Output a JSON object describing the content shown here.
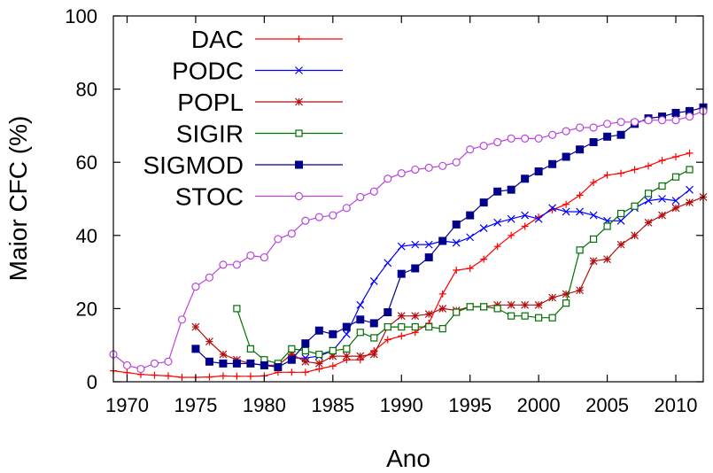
{
  "chart_data": {
    "type": "line",
    "xlabel": "Ano",
    "ylabel": "Maior CFC (%)",
    "xlim": [
      1969,
      2012
    ],
    "ylim": [
      0,
      100
    ],
    "xticks": [
      1970,
      1975,
      1980,
      1985,
      1990,
      1995,
      2000,
      2005,
      2010
    ],
    "yticks": [
      0,
      20,
      40,
      60,
      80,
      100
    ],
    "legend_position": "top-left",
    "grid": false,
    "series": [
      {
        "name": "DAC",
        "color": "#ff0000",
        "marker": "plus",
        "x": [
          1969,
          1970,
          1971,
          1972,
          1973,
          1974,
          1975,
          1976,
          1977,
          1978,
          1979,
          1980,
          1981,
          1982,
          1983,
          1984,
          1985,
          1986,
          1987,
          1988,
          1989,
          1990,
          1991,
          1992,
          1993,
          1994,
          1995,
          1996,
          1997,
          1998,
          1999,
          2000,
          2001,
          2002,
          2003,
          2004,
          2005,
          2006,
          2007,
          2008,
          2009,
          2010,
          2011
        ],
        "values": [
          3,
          2.5,
          2,
          1.8,
          1.6,
          1.2,
          1.2,
          1.3,
          1.6,
          1.5,
          1.5,
          1.6,
          2.6,
          2.6,
          2.6,
          3.5,
          4.3,
          6,
          6,
          8.5,
          11.5,
          12.5,
          13.5,
          16,
          24,
          30.5,
          31,
          33.5,
          37,
          40,
          42.5,
          45,
          47,
          48.5,
          51,
          54.5,
          56.5,
          57,
          58,
          59,
          60.5,
          61.5,
          62.5
        ]
      },
      {
        "name": "PODC",
        "color": "#0000ff",
        "marker": "cross",
        "x": [
          1982,
          1983,
          1984,
          1985,
          1986,
          1987,
          1988,
          1989,
          1990,
          1991,
          1992,
          1993,
          1994,
          1995,
          1996,
          1997,
          1998,
          1999,
          2000,
          2001,
          2002,
          2003,
          2004,
          2005,
          2006,
          2007,
          2008,
          2009,
          2010,
          2011
        ],
        "values": [
          6.5,
          6.5,
          7,
          8.5,
          13,
          21,
          27.5,
          32.5,
          37,
          37.5,
          37.5,
          38.5,
          38,
          39.5,
          42,
          43.5,
          44.5,
          45.5,
          44.5,
          47.5,
          46.5,
          46.5,
          45.5,
          44,
          44,
          47.5,
          49.5,
          50,
          49.5,
          52.5
        ]
      },
      {
        "name": "POPL",
        "color": "#b01010",
        "marker": "star",
        "x": [
          1975,
          1976,
          1977,
          1978,
          1979,
          1980,
          1981,
          1982,
          1983,
          1984,
          1985,
          1986,
          1987,
          1988,
          1989,
          1990,
          1991,
          1992,
          1993,
          1994,
          1995,
          1996,
          1997,
          1998,
          1999,
          2000,
          2001,
          2002,
          2003,
          2004,
          2005,
          2006,
          2007,
          2008,
          2009,
          2010,
          2011,
          2012
        ],
        "values": [
          15,
          11,
          7.5,
          6,
          5,
          4.5,
          4.5,
          7.5,
          5.5,
          5,
          7,
          7,
          7,
          7.5,
          15,
          18,
          18,
          18.5,
          20,
          19.5,
          20.5,
          20.5,
          21,
          21,
          21,
          21,
          23,
          24,
          25,
          33,
          33.5,
          37.5,
          40,
          43.5,
          45.5,
          47.5,
          49,
          50.5
        ]
      },
      {
        "name": "SIGIR",
        "color": "#007000",
        "marker": "square-open",
        "x": [
          1978,
          1979,
          1980,
          1981,
          1982,
          1983,
          1984,
          1985,
          1986,
          1987,
          1988,
          1989,
          1990,
          1991,
          1992,
          1993,
          1994,
          1995,
          1996,
          1997,
          1998,
          1999,
          2000,
          2001,
          2002,
          2003,
          2004,
          2005,
          2006,
          2007,
          2008,
          2009,
          2010,
          2011
        ],
        "values": [
          20,
          9,
          6,
          5,
          9,
          8.5,
          7.5,
          8.5,
          9,
          13.5,
          12,
          15,
          15,
          15,
          15,
          14.5,
          19,
          20.5,
          20.5,
          20,
          18,
          18,
          17.5,
          17.5,
          21.5,
          36,
          39,
          42.5,
          46,
          48,
          51.5,
          53.5,
          56,
          58
        ]
      },
      {
        "name": "SIGMOD",
        "color": "#00008b",
        "marker": "square-filled",
        "x": [
          1975,
          1976,
          1977,
          1978,
          1979,
          1980,
          1981,
          1982,
          1983,
          1984,
          1985,
          1986,
          1987,
          1988,
          1989,
          1990,
          1991,
          1992,
          1993,
          1994,
          1995,
          1996,
          1997,
          1998,
          1999,
          2000,
          2001,
          2002,
          2003,
          2004,
          2005,
          2006,
          2007,
          2008,
          2009,
          2010,
          2011,
          2012
        ],
        "values": [
          9,
          5.5,
          5,
          5,
          5,
          4.5,
          4,
          6,
          10.5,
          14,
          13,
          15,
          17,
          16,
          19,
          29.5,
          31,
          34,
          38.5,
          43,
          45.5,
          49,
          52,
          52.5,
          55.5,
          57.5,
          59.5,
          61.5,
          63.5,
          65.5,
          67,
          67.5,
          70.5,
          72,
          72.5,
          73.5,
          74,
          75
        ]
      },
      {
        "name": "STOC",
        "color": "#bb44dd",
        "marker": "circle-open",
        "x": [
          1969,
          1970,
          1971,
          1972,
          1973,
          1974,
          1975,
          1976,
          1977,
          1978,
          1979,
          1980,
          1981,
          1982,
          1983,
          1984,
          1985,
          1986,
          1987,
          1988,
          1989,
          1990,
          1991,
          1992,
          1993,
          1994,
          1995,
          1996,
          1997,
          1998,
          1999,
          2000,
          2001,
          2002,
          2003,
          2004,
          2005,
          2006,
          2007,
          2008,
          2009,
          2010,
          2011,
          2012
        ],
        "values": [
          7.5,
          4.5,
          3.5,
          5,
          5.5,
          17,
          26,
          28.5,
          32,
          32,
          34.5,
          34,
          39,
          40.5,
          44,
          45,
          45.5,
          47.5,
          50.5,
          52,
          55.5,
          57,
          58,
          58.5,
          59,
          60,
          63.5,
          64.5,
          65.5,
          66.5,
          66.5,
          66.5,
          67.5,
          68.5,
          69.5,
          69.5,
          70.5,
          71,
          71,
          71.5,
          71.5,
          71.5,
          72.5,
          74
        ]
      }
    ]
  }
}
